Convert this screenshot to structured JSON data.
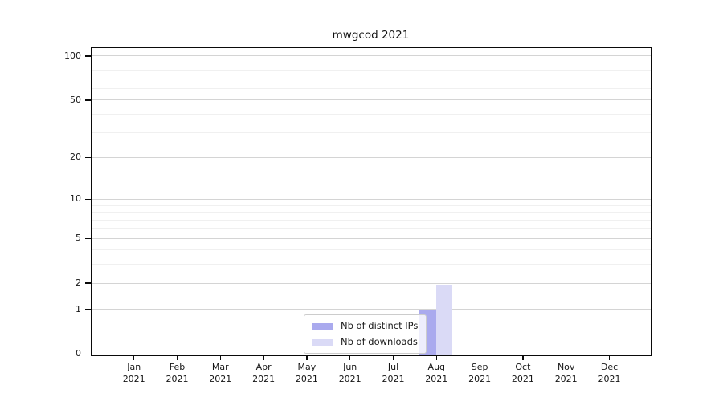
{
  "chart_data": {
    "type": "bar",
    "title": "mwgcod 2021",
    "x_categories": [
      "Jan",
      "Feb",
      "Mar",
      "Apr",
      "May",
      "Jun",
      "Jul",
      "Aug",
      "Sep",
      "Oct",
      "Nov",
      "Dec"
    ],
    "x_year": "2021",
    "series": [
      {
        "name": "Nb of distinct IPs",
        "color": "#aaaaee",
        "values": [
          0,
          0,
          0,
          0,
          0,
          0,
          0,
          1,
          0,
          0,
          0,
          0
        ]
      },
      {
        "name": "Nb of downloads",
        "color": "#dadaf6",
        "values": [
          0,
          0,
          0,
          0,
          0,
          0,
          0,
          2,
          0,
          0,
          0,
          0
        ]
      }
    ],
    "y_scale": "log1p",
    "y_tick_values": [
      0,
      1,
      2,
      5,
      10,
      20,
      50,
      100
    ],
    "y_tick_labels": [
      "0",
      "1",
      "2",
      "5",
      "10",
      "20",
      "50",
      "100"
    ],
    "y_minor_gridline_values": [
      3,
      4,
      6,
      7,
      8,
      9,
      30,
      40,
      60,
      70,
      80,
      90
    ],
    "ylim": [
      0,
      116
    ],
    "grid": true,
    "legend": {
      "position": "lower-center",
      "items": [
        "Nb of distinct IPs",
        "Nb of downloads"
      ]
    }
  },
  "colors": {
    "background": "#ffffff",
    "axis": "#0a0a0a",
    "text": "#151515",
    "major_grid": "#d4d4d4",
    "minor_grid": "#f0f0f0",
    "legend_border": "#cccccc",
    "legend_background": "rgba(255,255,255,0.8)",
    "series_distinct_ips": "#aaaaee",
    "series_downloads": "#dadaf6"
  }
}
